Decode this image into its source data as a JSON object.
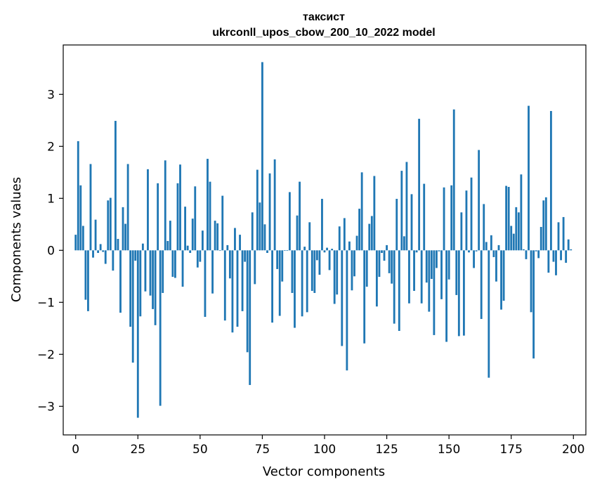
{
  "chart_data": {
    "type": "bar",
    "title": "таксист",
    "subtitle": "ukrconll_upos_cbow_200_10_2022 model",
    "xlabel": "Vector components",
    "ylabel": "Components values",
    "xlim": [
      -5,
      205
    ],
    "ylim": [
      -3.55,
      3.95
    ],
    "xticks": [
      0,
      25,
      50,
      75,
      100,
      125,
      150,
      175,
      200
    ],
    "yticks": [
      -3,
      -2,
      -1,
      0,
      1,
      2,
      3
    ],
    "bar_color": "#1f77b4",
    "grid": false,
    "legend": "none",
    "x": [
      0,
      1,
      2,
      3,
      4,
      5,
      6,
      7,
      8,
      9,
      10,
      11,
      12,
      13,
      14,
      15,
      16,
      17,
      18,
      19,
      20,
      21,
      22,
      23,
      24,
      25,
      26,
      27,
      28,
      29,
      30,
      31,
      32,
      33,
      34,
      35,
      36,
      37,
      38,
      39,
      40,
      41,
      42,
      43,
      44,
      45,
      46,
      47,
      48,
      49,
      50,
      51,
      52,
      53,
      54,
      55,
      56,
      57,
      58,
      59,
      60,
      61,
      62,
      63,
      64,
      65,
      66,
      67,
      68,
      69,
      70,
      71,
      72,
      73,
      74,
      75,
      76,
      77,
      78,
      79,
      80,
      81,
      82,
      83,
      84,
      85,
      86,
      87,
      88,
      89,
      90,
      91,
      92,
      93,
      94,
      95,
      96,
      97,
      98,
      99,
      100,
      101,
      102,
      103,
      104,
      105,
      106,
      107,
      108,
      109,
      110,
      111,
      112,
      113,
      114,
      115,
      116,
      117,
      118,
      119,
      120,
      121,
      122,
      123,
      124,
      125,
      126,
      127,
      128,
      129,
      130,
      131,
      132,
      133,
      134,
      135,
      136,
      137,
      138,
      139,
      140,
      141,
      142,
      143,
      144,
      145,
      146,
      147,
      148,
      149,
      150,
      151,
      152,
      153,
      154,
      155,
      156,
      157,
      158,
      159,
      160,
      161,
      162,
      163,
      164,
      165,
      166,
      167,
      168,
      169,
      170,
      171,
      172,
      173,
      174,
      175,
      176,
      177,
      178,
      179,
      180,
      181,
      182,
      183,
      184,
      185,
      186,
      187,
      188,
      189,
      190,
      191,
      192,
      193,
      194,
      195,
      196,
      197,
      198,
      199
    ],
    "values": [
      0.3,
      2.1,
      1.25,
      0.47,
      -0.95,
      -1.17,
      1.66,
      -0.14,
      0.59,
      -0.05,
      0.12,
      -0.03,
      -0.26,
      0.96,
      1.01,
      -0.39,
      2.49,
      0.22,
      -1.2,
      0.83,
      0.51,
      1.66,
      -1.47,
      -2.16,
      -0.2,
      -3.22,
      -1.27,
      0.13,
      -0.79,
      1.56,
      -0.87,
      -1.13,
      -1.44,
      1.29,
      -2.99,
      -0.82,
      1.73,
      0.18,
      0.57,
      -0.51,
      -0.53,
      1.29,
      1.65,
      -0.7,
      0.84,
      0.09,
      -0.05,
      0.61,
      1.23,
      -0.33,
      -0.22,
      0.38,
      -1.28,
      1.76,
      1.32,
      -0.83,
      0.57,
      0.52,
      -0.01,
      1.05,
      -1.35,
      0.1,
      -0.54,
      -1.58,
      0.43,
      -1.47,
      0.3,
      -1.17,
      -0.22,
      -1.96,
      -2.59,
      0.73,
      -0.65,
      1.55,
      0.92,
      3.62,
      0.5,
      -0.05,
      1.48,
      -1.39,
      1.75,
      -0.36,
      -1.26,
      -0.6,
      -0.01,
      -0.01,
      1.12,
      -0.82,
      -1.49,
      0.67,
      1.32,
      -1.27,
      0.07,
      -1.19,
      0.54,
      -0.78,
      -0.82,
      -0.19,
      -0.47,
      0.99,
      -0.04,
      0.05,
      -0.38,
      0.03,
      -1.03,
      -0.85,
      0.46,
      -1.84,
      0.62,
      -2.31,
      0.17,
      -0.77,
      -0.5,
      0.28,
      0.8,
      1.5,
      -1.79,
      -0.7,
      0.51,
      0.66,
      1.43,
      -1.08,
      -0.51,
      -0.05,
      -0.2,
      0.1,
      -0.44,
      -0.64,
      -1.41,
      0.99,
      -1.55,
      1.53,
      0.27,
      1.7,
      -1.02,
      1.08,
      -0.78,
      -0.04,
      2.53,
      -1.02,
      1.28,
      -0.62,
      -1.18,
      -0.55,
      -1.63,
      -0.34,
      -0.02,
      -0.94,
      1.21,
      -1.76,
      -0.56,
      1.25,
      2.71,
      -0.86,
      -1.65,
      0.73,
      -1.64,
      1.15,
      -0.04,
      1.4,
      -0.34,
      -0.02,
      1.93,
      -1.32,
      0.89,
      0.16,
      -2.45,
      0.29,
      -0.13,
      -0.6,
      0.1,
      -1.14,
      -0.97,
      1.24,
      1.22,
      0.47,
      0.32,
      0.83,
      0.73,
      1.46,
      0.02,
      -0.17,
      2.78,
      -1.19,
      -2.08,
      -0.02,
      -0.15,
      0.45,
      0.96,
      1.02,
      -0.43,
      2.68,
      -0.22,
      -0.48,
      0.54,
      -0.19,
      0.64,
      -0.24,
      0.21,
      0.02
    ]
  }
}
